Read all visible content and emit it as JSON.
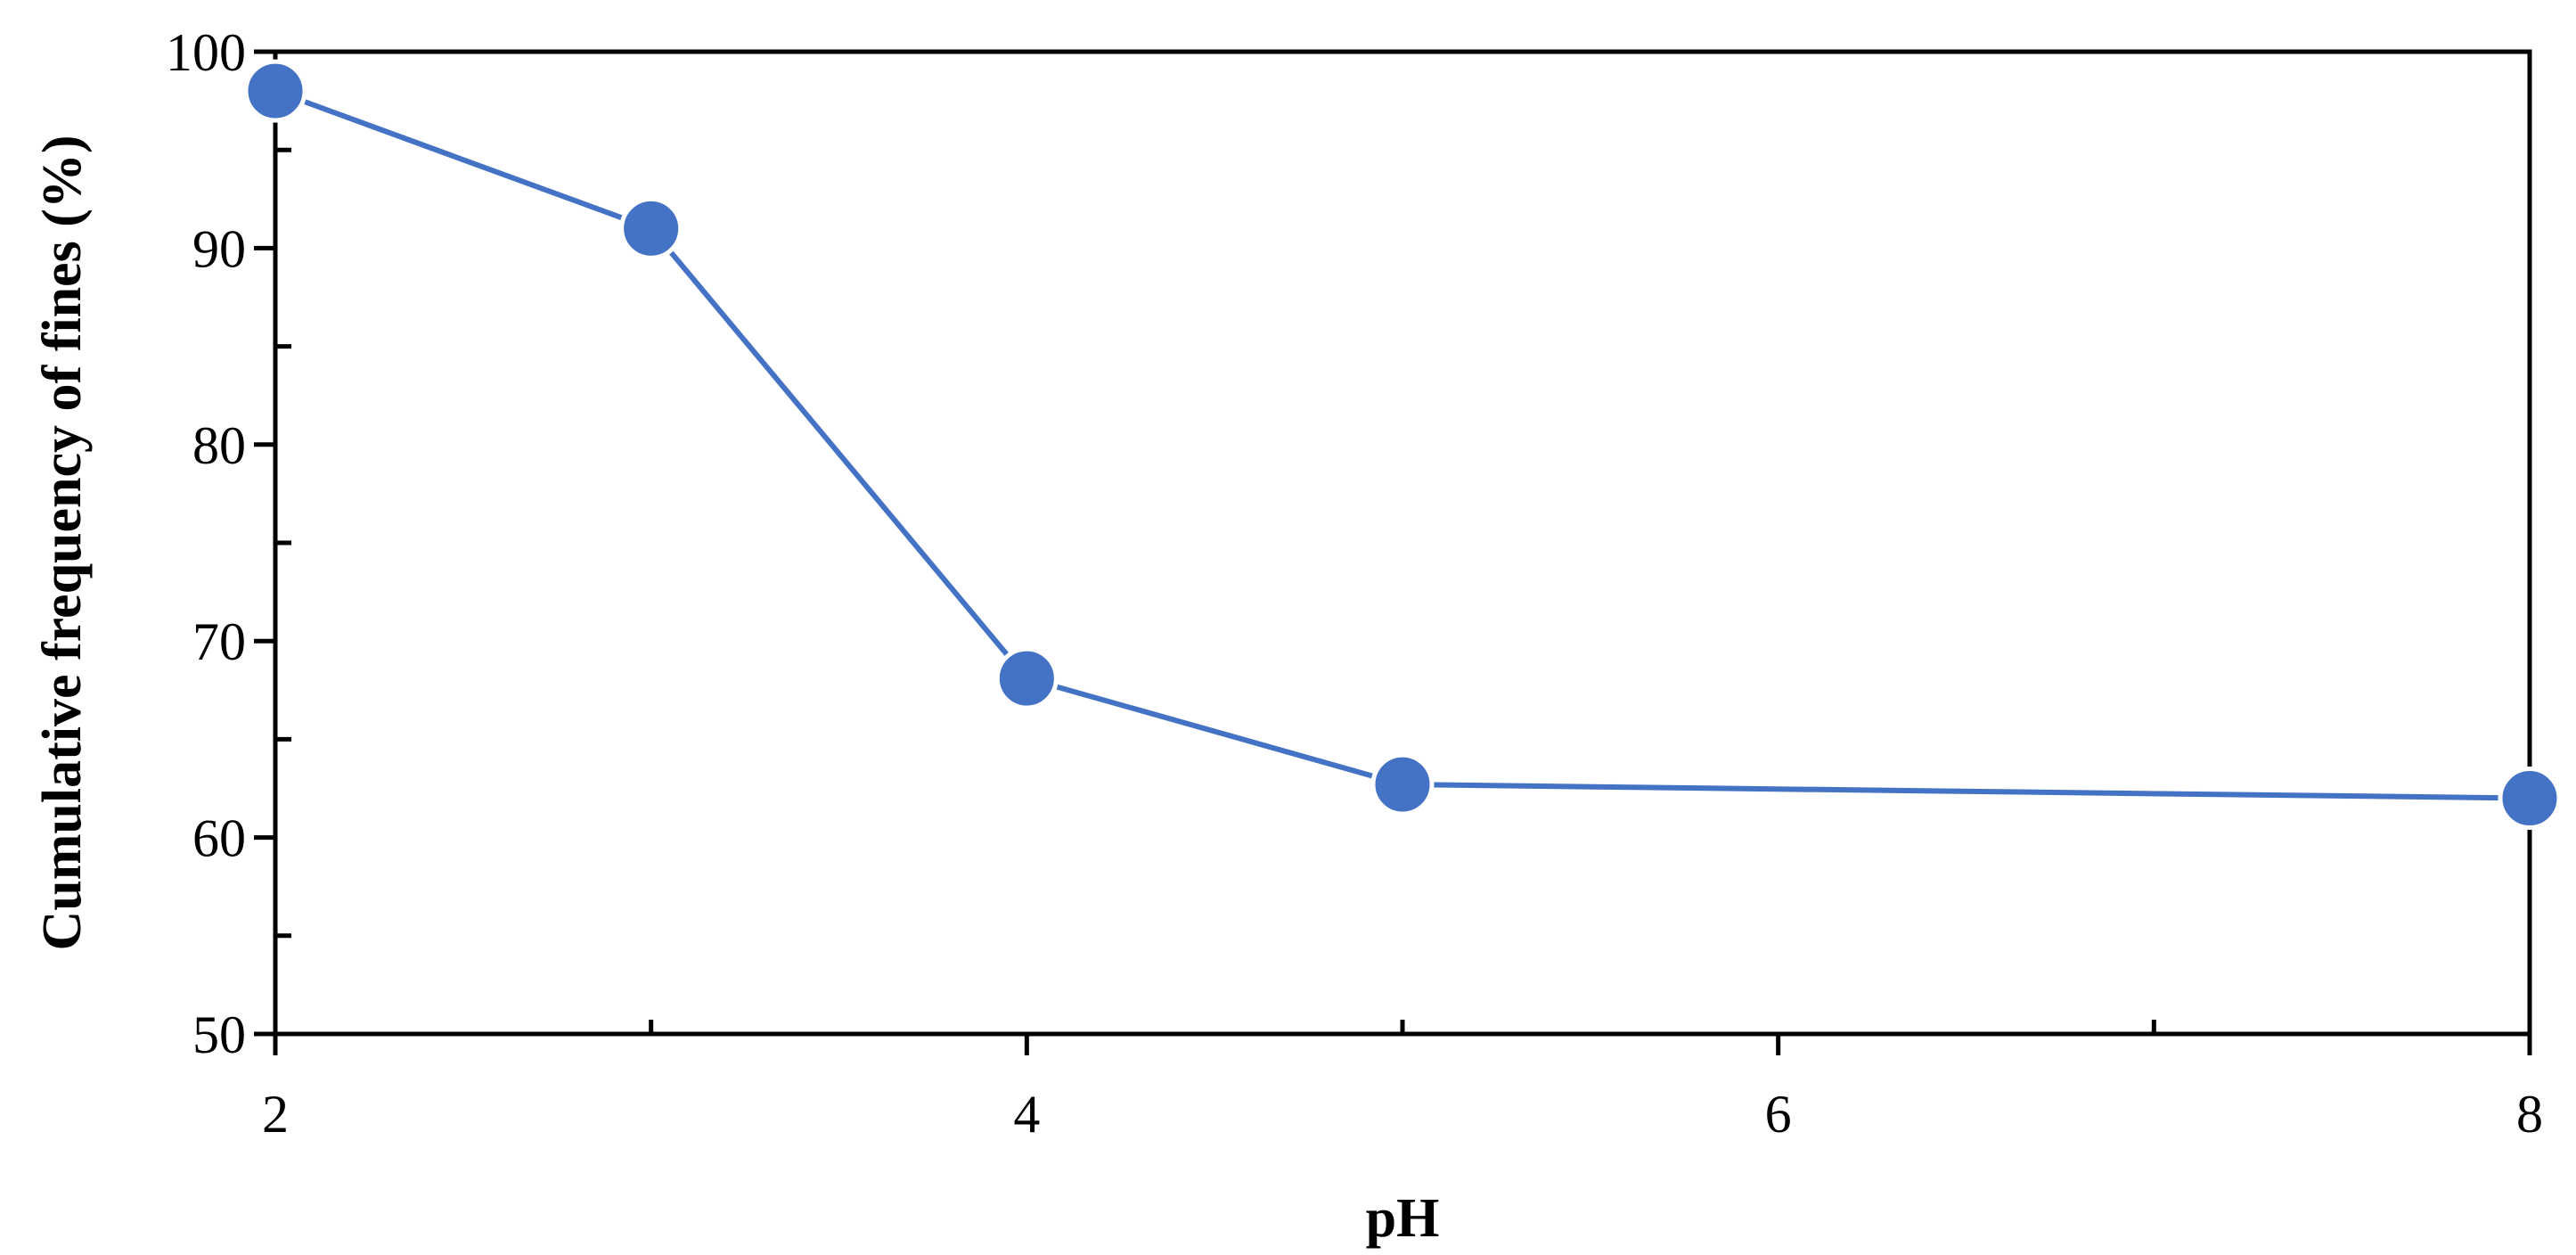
{
  "chart_data": {
    "type": "line",
    "xlabel": "pH",
    "ylabel": "Cumulative frequency of fines (%)",
    "xlim": [
      2,
      8
    ],
    "ylim": [
      50,
      100
    ],
    "x_ticks": [
      2,
      4,
      6,
      8
    ],
    "y_ticks": [
      50,
      60,
      70,
      80,
      90,
      100
    ],
    "grid": false,
    "series": [
      {
        "color": "#4472C4",
        "x": [
          2,
          3,
          4,
          5,
          8
        ],
        "y": [
          98,
          91,
          68.1,
          62.7,
          62
        ]
      }
    ]
  }
}
